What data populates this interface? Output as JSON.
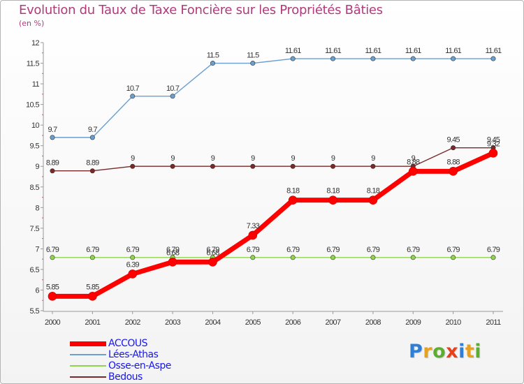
{
  "title": "Evolution du Taux de Taxe Foncière sur les Propriétés Bâties",
  "subtitle": "(en %)",
  "logo": {
    "text": "Proxiti",
    "letters": [
      {
        "ch": "P",
        "color": "#2f7fd6"
      },
      {
        "ch": "r",
        "color": "#e6a21e"
      },
      {
        "ch": "o",
        "color": "#5cae2f"
      },
      {
        "ch": "x",
        "color": "#e8401a"
      },
      {
        "ch": "i",
        "color": "#2f7fd6"
      },
      {
        "ch": "t",
        "color": "#e6a21e"
      },
      {
        "ch": "i",
        "color": "#5cae2f"
      }
    ]
  },
  "chart_data": {
    "type": "line",
    "title": "Evolution du Taux de Taxe Foncière sur les Propriétés Bâties",
    "ylabel": "(en %)",
    "xlabel": "",
    "x": [
      "2000",
      "2001",
      "2002",
      "2003",
      "2004",
      "2005",
      "2006",
      "2007",
      "2008",
      "2009",
      "2010",
      "2011"
    ],
    "ylim": [
      5.5,
      12
    ],
    "yticks": [
      "5.5",
      "6",
      "6.5",
      "7",
      "7.5",
      "8",
      "8.5",
      "9",
      "9.5",
      "10",
      "10.5",
      "11",
      "11.5",
      "12"
    ],
    "grid": false,
    "legend_position": "bottom-left",
    "series": [
      {
        "name": "ACCOUS",
        "color": "#ff0000",
        "labels": [
          "5.85",
          "5.85",
          "6.39",
          "6.68",
          "6.68",
          "7.33",
          "8.18",
          "8.18",
          "8.18",
          "8.88",
          "8.88",
          "9.32"
        ],
        "values": [
          5.85,
          5.85,
          6.39,
          6.68,
          6.68,
          7.33,
          8.18,
          8.18,
          8.18,
          8.88,
          8.88,
          9.32
        ]
      },
      {
        "name": "Lées-Athas",
        "color": "#6a9fd0",
        "labels": [
          "9.7",
          "9.7",
          "10.7",
          "10.7",
          "11.5",
          "11.5",
          "11.61",
          "11.61",
          "11.61",
          "11.61",
          "11.61",
          "11.61"
        ],
        "values": [
          9.7,
          9.7,
          10.7,
          10.7,
          11.5,
          11.5,
          11.61,
          11.61,
          11.61,
          11.61,
          11.61,
          11.61
        ]
      },
      {
        "name": "Osse-en-Aspe",
        "color": "#8fd44a",
        "labels": [
          "6.79",
          "6.79",
          "6.79",
          "6.79",
          "6.79",
          "6.79",
          "6.79",
          "6.79",
          "6.79",
          "6.79",
          "6.79",
          "6.79"
        ],
        "values": [
          6.79,
          6.79,
          6.79,
          6.79,
          6.79,
          6.79,
          6.79,
          6.79,
          6.79,
          6.79,
          6.79,
          6.79
        ]
      },
      {
        "name": "Bedous",
        "color": "#7a2828",
        "labels": [
          "8.89",
          "8.89",
          "9",
          "9",
          "9",
          "9",
          "9",
          "9",
          "9",
          "9",
          "9.45",
          "9.45"
        ],
        "values": [
          8.89,
          8.89,
          9,
          9,
          9,
          9,
          9,
          9,
          9,
          9,
          9.45,
          9.45
        ]
      }
    ]
  }
}
